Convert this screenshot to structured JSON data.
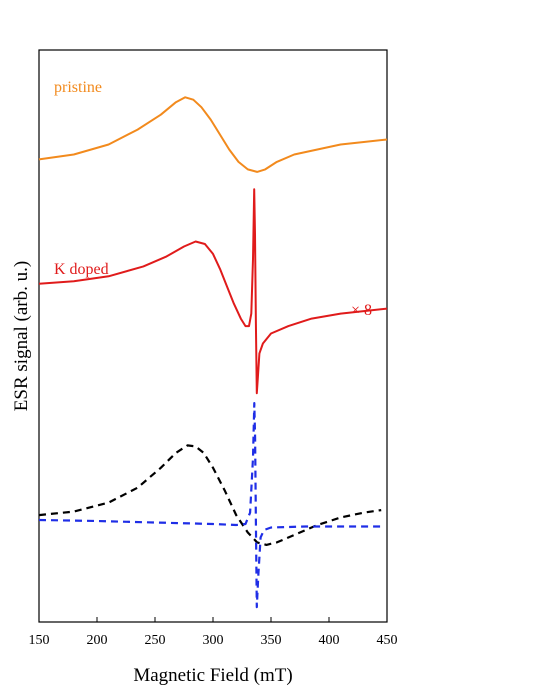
{
  "chart_data": {
    "type": "line",
    "title": "",
    "xlabel": "Magnetic Field (mT)",
    "ylabel": "ESR signal (arb. u.)",
    "xlim": [
      150,
      450
    ],
    "xticks": [
      "150",
      "200",
      "250",
      "300",
      "350",
      "400",
      "450"
    ],
    "yticks_shown": false,
    "grid": false,
    "annotations": [
      {
        "text": "pristine",
        "color": "#f28a1d"
      },
      {
        "text": "K doped",
        "color": "#e01b1b"
      },
      {
        "text": "× 8",
        "color": "#e01b1b"
      }
    ],
    "series": [
      {
        "name": "pristine",
        "color": "#f28a1d",
        "style": "solid",
        "x": [
          150,
          180,
          210,
          235,
          255,
          268,
          276,
          283,
          290,
          298,
          306,
          314,
          322,
          330,
          338,
          345,
          355,
          370,
          390,
          410,
          430,
          450
        ],
        "y": [
          0.78,
          0.79,
          0.81,
          0.84,
          0.87,
          0.895,
          0.905,
          0.9,
          0.885,
          0.86,
          0.83,
          0.8,
          0.775,
          0.76,
          0.755,
          0.76,
          0.775,
          0.79,
          0.8,
          0.81,
          0.815,
          0.82
        ]
      },
      {
        "name": "K doped (× 8)",
        "color": "#e01b1b",
        "style": "solid",
        "x": [
          150,
          180,
          210,
          240,
          260,
          275,
          285,
          293,
          300,
          306,
          312,
          318,
          324,
          328,
          331,
          333,
          334.5,
          335.5,
          336.2,
          337,
          337.8,
          338.6,
          340,
          343,
          350,
          365,
          385,
          410,
          430,
          450
        ],
        "y": [
          0.53,
          0.535,
          0.545,
          0.565,
          0.585,
          0.605,
          0.615,
          0.61,
          0.59,
          0.56,
          0.525,
          0.49,
          0.46,
          0.445,
          0.445,
          0.47,
          0.58,
          0.72,
          0.63,
          0.45,
          0.31,
          0.34,
          0.39,
          0.41,
          0.43,
          0.445,
          0.46,
          0.47,
          0.475,
          0.48
        ]
      },
      {
        "name": "fit component (black dashed)",
        "color": "#000000",
        "style": "dashed",
        "x": [
          150,
          180,
          210,
          235,
          255,
          268,
          278,
          285,
          292,
          300,
          310,
          320,
          330,
          338,
          346,
          355,
          370,
          390,
          410,
          430,
          445
        ],
        "y": [
          0.065,
          0.072,
          0.09,
          0.12,
          0.16,
          0.19,
          0.205,
          0.203,
          0.19,
          0.16,
          0.115,
          0.065,
          0.03,
          0.01,
          0.005,
          0.01,
          0.025,
          0.045,
          0.06,
          0.07,
          0.075
        ]
      },
      {
        "name": "fit component (blue dashed)",
        "color": "#1f2ee6",
        "style": "dashed",
        "x": [
          150,
          200,
          250,
          300,
          320,
          328,
          332,
          334.5,
          335.6,
          336.3,
          337,
          337.8,
          339,
          341,
          344,
          350,
          380,
          420,
          445
        ],
        "y": [
          0.055,
          0.053,
          0.05,
          0.047,
          0.045,
          0.047,
          0.07,
          0.18,
          0.29,
          0.22,
          0.05,
          -0.12,
          -0.06,
          0.02,
          0.035,
          0.04,
          0.042,
          0.042,
          0.042
        ]
      }
    ]
  }
}
